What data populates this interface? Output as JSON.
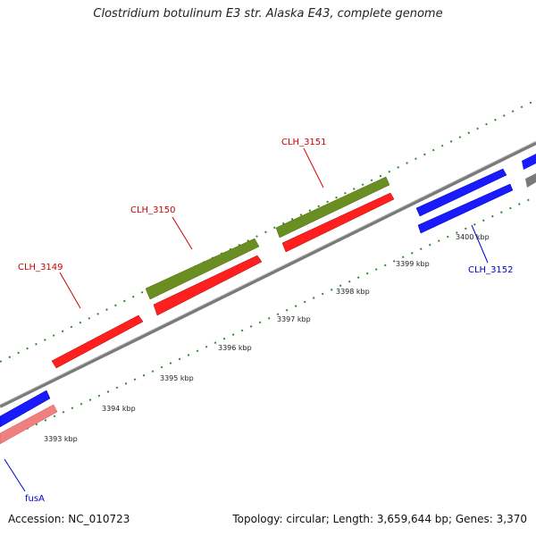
{
  "title": "Clostridium botulinum E3 str. Alaska E43, complete genome",
  "footer": {
    "accession": "Accession: NC_010723",
    "summary": "Topology: circular; Length: 3,659,644 bp; Genes: 3,370"
  },
  "colors": {
    "forward_red": "#ff1f1f",
    "pseudo_pink": "#f08080",
    "olive": "#6b8e23",
    "blue_gene": "#1a1aff",
    "backbone": "#7a7a7a",
    "tick_green": "#2e8b2e",
    "label_red": "#cc0000",
    "label_blue": "#0000cc"
  },
  "kbp_ticks": [
    "3393 kbp",
    "3394 kbp",
    "3395 kbp",
    "3396 kbp",
    "3397 kbp",
    "3398 kbp",
    "3399 kbp",
    "3400 kbp"
  ],
  "gene_labels": [
    {
      "id": "CLH_3149",
      "text": "CLH_3149",
      "color": "label_red"
    },
    {
      "id": "CLH_3150",
      "text": "CLH_3150",
      "color": "label_red"
    },
    {
      "id": "CLH_3151",
      "text": "CLH_3151",
      "color": "label_red"
    },
    {
      "id": "CLH_3152",
      "text": "CLH_3152",
      "color": "label_blue"
    },
    {
      "id": "fusA",
      "text": "fusA",
      "color": "label_blue"
    }
  ]
}
